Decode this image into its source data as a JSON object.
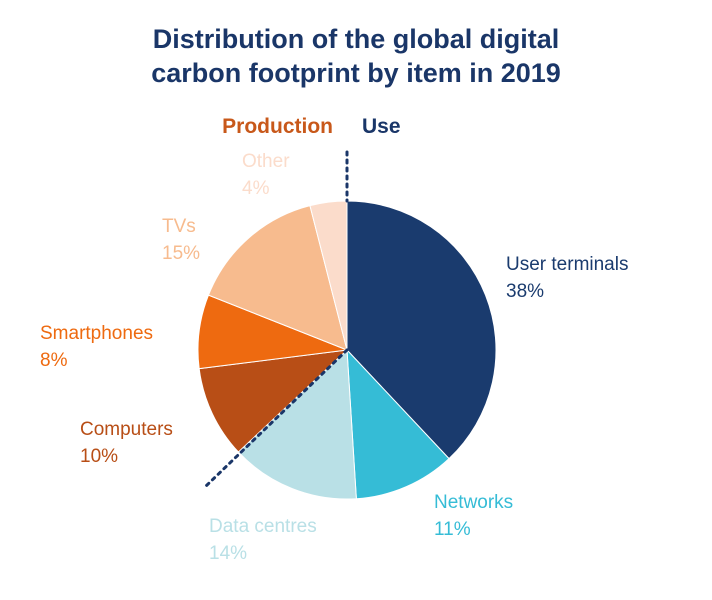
{
  "chart_data": {
    "type": "pie",
    "title_lines": [
      "Distribution of the global digital",
      "carbon footprint by item in 2019"
    ],
    "group_labels": {
      "production": "Production",
      "use": "Use"
    },
    "slices": [
      {
        "name": "User terminals",
        "value": 38,
        "label": "38%",
        "color": "#1a3b6e"
      },
      {
        "name": "Networks",
        "value": 11,
        "label": "11%",
        "color": "#35bcd6"
      },
      {
        "name": "Data centres",
        "value": 14,
        "label": "14%",
        "color": "#b9e0e6"
      },
      {
        "name": "Computers",
        "value": 10,
        "label": "10%",
        "color": "#b84e16"
      },
      {
        "name": "Smartphones",
        "value": 8,
        "label": "8%",
        "color": "#ee6a10"
      },
      {
        "name": "TVs",
        "value": 15,
        "label": "15%",
        "color": "#f7bb8e"
      },
      {
        "name": "Other",
        "value": 4,
        "label": "4%",
        "color": "#fbdccb"
      }
    ],
    "group_colors": {
      "production": "#c8581a",
      "use": "#1a3668"
    },
    "divider_color": "#1a3668"
  }
}
